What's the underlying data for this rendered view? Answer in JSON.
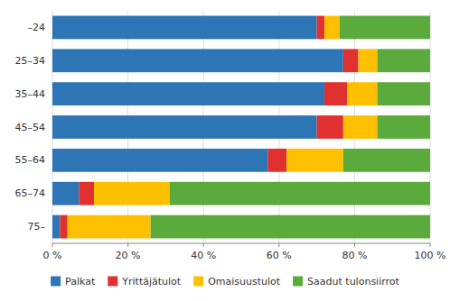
{
  "chart_data": {
    "type": "bar",
    "orientation": "horizontal",
    "stacked": true,
    "categories": [
      "–24",
      "25–34",
      "35–44",
      "45–54",
      "55–64",
      "65–74",
      "75–"
    ],
    "series": [
      {
        "name": "Palkat",
        "color": "#2e75b6",
        "values": [
          70,
          77,
          72,
          70,
          57,
          7,
          2
        ]
      },
      {
        "name": "Yrittäjätulot",
        "color": "#e03030",
        "values": [
          2,
          4,
          6,
          7,
          5,
          4,
          2
        ]
      },
      {
        "name": "Omaisuustulot",
        "color": "#ffc000",
        "values": [
          4,
          5,
          8,
          9,
          15,
          20,
          22
        ]
      },
      {
        "name": "Saadut tulonsiirrot",
        "color": "#5aaa3c",
        "values": [
          24,
          14,
          14,
          14,
          23,
          69,
          74
        ]
      }
    ],
    "xlim": [
      0,
      100
    ],
    "xticks": [
      {
        "value": 0,
        "label": "0 %"
      },
      {
        "value": 20,
        "label": "20 %"
      },
      {
        "value": 40,
        "label": "40 %"
      },
      {
        "value": 60,
        "label": "60 %"
      },
      {
        "value": 80,
        "label": "80 %"
      },
      {
        "value": 100,
        "label": "100 %"
      }
    ],
    "grid": true,
    "legend": "bottom"
  }
}
